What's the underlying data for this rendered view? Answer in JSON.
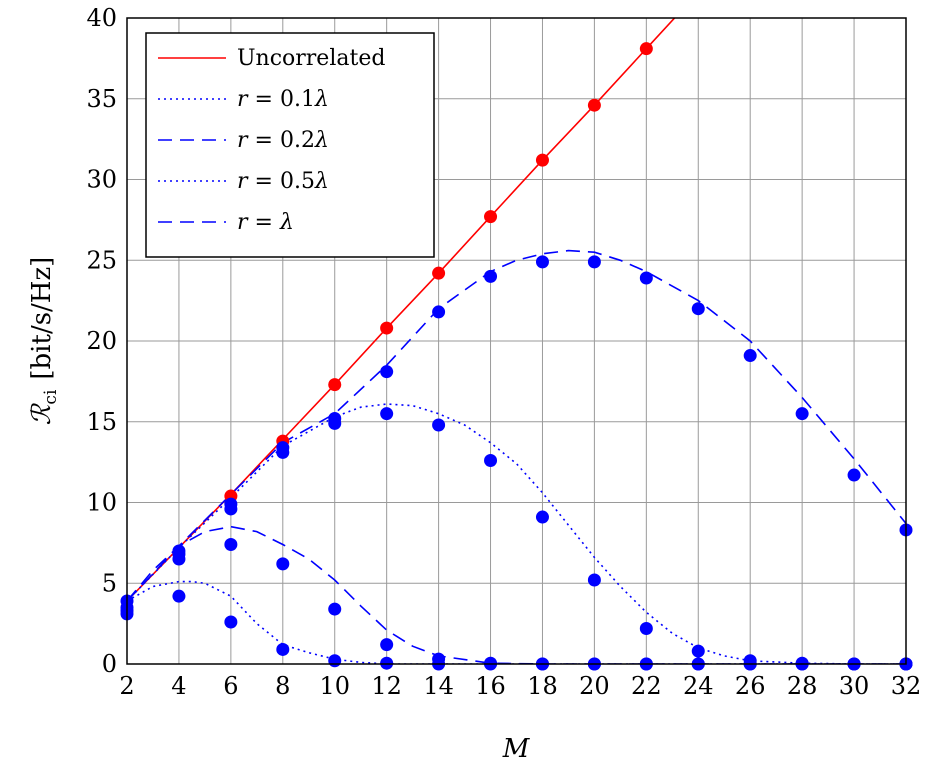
{
  "chart_data": {
    "type": "line",
    "xlabel": "M",
    "ylabel": "ℛᴄᴵ [bit/s/Hz]",
    "ylabel_main": "ℛ",
    "ylabel_sub": "ci",
    "ylabel_unit": "[bit/s/Hz]",
    "xlim": [
      2,
      32
    ],
    "ylim": [
      0,
      40
    ],
    "xticks": [
      2,
      4,
      6,
      8,
      10,
      12,
      14,
      16,
      18,
      20,
      22,
      24,
      26,
      28,
      30,
      32
    ],
    "yticks": [
      0,
      5,
      10,
      15,
      20,
      25,
      30,
      35,
      40
    ],
    "grid": true,
    "legend_position": "top-left",
    "series": [
      {
        "name": "Uncorrelated",
        "legend_parts": [
          "Uncorrelated"
        ],
        "color": "#ff0000",
        "dash": "solid",
        "line": {
          "x": [
            2,
            4,
            6,
            8,
            10,
            12,
            14,
            16,
            18,
            20,
            22,
            24
          ],
          "y": [
            3.9,
            7.2,
            10.5,
            13.9,
            17.3,
            20.8,
            24.2,
            27.7,
            31.2,
            34.6,
            38.1,
            41.6
          ]
        },
        "markers": {
          "x": [
            6,
            8,
            10,
            12,
            14,
            16,
            18,
            20,
            22
          ],
          "y": [
            10.4,
            13.8,
            17.3,
            20.8,
            24.2,
            27.7,
            31.2,
            34.6,
            38.1
          ]
        }
      },
      {
        "name": "r = 0.1λ",
        "legend_parts": [
          "r",
          " = 0.1",
          "λ"
        ],
        "color": "#0000ff",
        "dash": "dotted",
        "line": {
          "x": [
            2,
            3,
            4,
            4.5,
            5,
            6,
            7,
            8,
            9,
            10,
            11,
            12,
            14,
            16,
            32
          ],
          "y": [
            3.9,
            4.8,
            5.1,
            5.1,
            5.0,
            4.2,
            2.5,
            1.2,
            0.7,
            0.3,
            0.1,
            0.0,
            0.0,
            0.0,
            0.0
          ]
        },
        "markers": {
          "x": [
            2,
            4,
            6,
            8,
            10,
            12,
            14,
            16,
            18,
            20,
            22,
            24,
            26,
            28,
            30,
            32
          ],
          "y": [
            3.1,
            4.2,
            2.6,
            0.9,
            0.2,
            0.05,
            0.0,
            0.0,
            0.0,
            0.0,
            0.0,
            0.0,
            0.0,
            0.0,
            0.0,
            0.0
          ]
        }
      },
      {
        "name": "r = 0.2λ",
        "legend_parts": [
          "r",
          " = 0.2",
          "λ"
        ],
        "color": "#0000ff",
        "dash": "dashed",
        "line": {
          "x": [
            2,
            3,
            4,
            5,
            6,
            7,
            8,
            9,
            10,
            11,
            12,
            13,
            14,
            16,
            18,
            32
          ],
          "y": [
            3.9,
            5.8,
            7.3,
            8.2,
            8.5,
            8.2,
            7.4,
            6.5,
            5.2,
            3.6,
            2.1,
            1.1,
            0.5,
            0.05,
            0.0,
            0.0
          ]
        },
        "markers": {
          "x": [
            2,
            4,
            6,
            8,
            10,
            12,
            14,
            16,
            18,
            20,
            22,
            24,
            26,
            28,
            30,
            32
          ],
          "y": [
            3.3,
            6.5,
            7.4,
            6.2,
            3.4,
            1.2,
            0.3,
            0.05,
            0.0,
            0.0,
            0.0,
            0.0,
            0.0,
            0.0,
            0.0,
            0.0
          ]
        }
      },
      {
        "name": "r = 0.5λ",
        "legend_parts": [
          "r",
          " = 0.5",
          "λ"
        ],
        "color": "#0000ff",
        "dash": "dotted",
        "line": {
          "x": [
            2,
            4,
            6,
            8,
            10,
            11,
            12,
            13,
            14,
            15,
            16,
            17,
            18,
            19,
            20,
            21,
            22,
            23,
            24,
            25,
            26,
            28,
            30,
            32
          ],
          "y": [
            3.9,
            7.2,
            10.3,
            13.5,
            15.3,
            15.9,
            16.1,
            16.0,
            15.5,
            14.8,
            13.7,
            12.4,
            10.6,
            8.6,
            6.6,
            4.8,
            3.2,
            1.9,
            1.0,
            0.5,
            0.2,
            0.05,
            0.0,
            0.0
          ]
        },
        "markers": {
          "x": [
            2,
            4,
            6,
            8,
            10,
            12,
            14,
            16,
            18,
            20,
            22,
            24,
            26,
            28,
            30,
            32
          ],
          "y": [
            3.5,
            6.8,
            9.6,
            13.1,
            14.9,
            15.5,
            14.8,
            12.6,
            9.1,
            5.2,
            2.2,
            0.8,
            0.2,
            0.05,
            0.0,
            0.0
          ]
        }
      },
      {
        "name": "r = λ",
        "legend_parts": [
          "r",
          " = ",
          "λ"
        ],
        "color": "#0000ff",
        "dash": "dashed",
        "line": {
          "x": [
            2,
            4,
            6,
            8,
            10,
            12,
            14,
            16,
            17,
            18,
            19,
            20,
            21,
            22,
            24,
            26,
            28,
            30,
            32
          ],
          "y": [
            3.9,
            7.3,
            10.5,
            13.7,
            15.5,
            18.5,
            22.0,
            24.3,
            25.0,
            25.4,
            25.6,
            25.5,
            25.0,
            24.3,
            22.5,
            20.0,
            16.5,
            12.7,
            8.7
          ]
        },
        "markers": {
          "x": [
            2,
            4,
            6,
            8,
            10,
            12,
            14,
            16,
            18,
            20,
            22,
            24,
            26,
            28,
            30,
            32
          ],
          "y": [
            3.9,
            7.0,
            9.9,
            13.4,
            15.2,
            18.1,
            21.8,
            24.0,
            24.9,
            24.9,
            23.9,
            22.0,
            19.1,
            15.5,
            11.7,
            8.3
          ]
        }
      }
    ]
  }
}
